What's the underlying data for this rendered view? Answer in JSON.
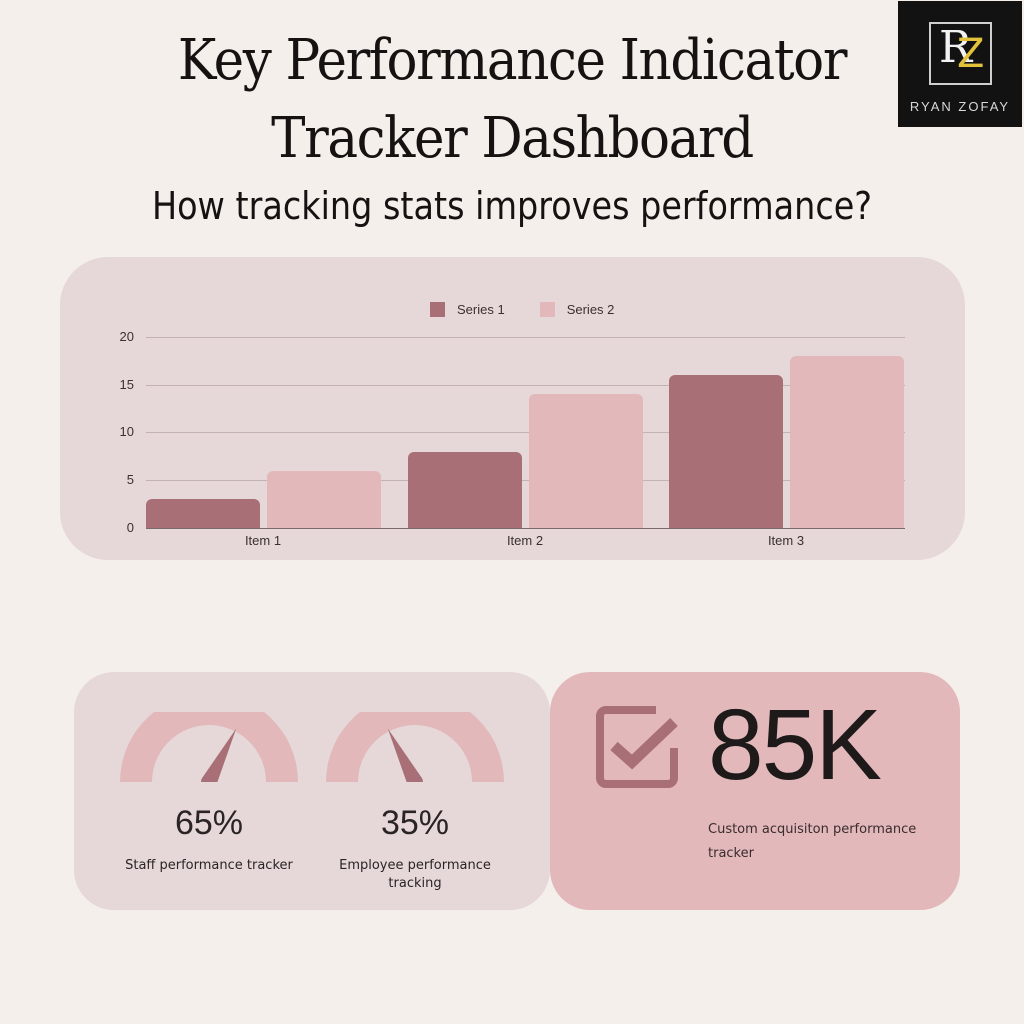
{
  "header": {
    "title_line1": "Key Performance Indicator",
    "title_line2": "Tracker Dashboard",
    "subtitle": "How tracking stats improves performance?"
  },
  "logo": {
    "initials_r": "R",
    "initials_z": "Z",
    "name": "RYAN ZOFAY"
  },
  "colors": {
    "background": "#f5efec",
    "panel": "#e6d8d8",
    "series1": "#a87076",
    "series2": "#e2b8bb",
    "kpi_panel": "#e2b8bb",
    "accent_gold": "#e2c23a"
  },
  "chart": {
    "legend": [
      {
        "label": "Series 1",
        "color": "#a87076"
      },
      {
        "label": "Series 2",
        "color": "#e2b8bb"
      }
    ],
    "y_ticks": [
      "20",
      "15",
      "10",
      "5",
      "0"
    ],
    "x_labels": [
      "Item 1",
      "Item 2",
      "Item 3"
    ]
  },
  "chart_data": {
    "type": "bar",
    "title": "",
    "categories": [
      "Item 1",
      "Item 2",
      "Item 3"
    ],
    "series": [
      {
        "name": "Series 1",
        "values": [
          3,
          8,
          16
        ]
      },
      {
        "name": "Series 2",
        "values": [
          6,
          14,
          18
        ]
      }
    ],
    "xlabel": "",
    "ylabel": "",
    "ylim": [
      0,
      20
    ],
    "yticks": [
      0,
      5,
      10,
      15,
      20
    ],
    "grid": true,
    "legend_position": "top"
  },
  "gauges": [
    {
      "value": "65%",
      "label": "Staff performance tracker",
      "percent": 65
    },
    {
      "value": "35%",
      "label": "Employee performance tracking",
      "percent": 35
    }
  ],
  "kpi": {
    "icon": "checkbox-checked-icon",
    "value": "85K",
    "label": "Custom acquisiton performance tracker"
  }
}
